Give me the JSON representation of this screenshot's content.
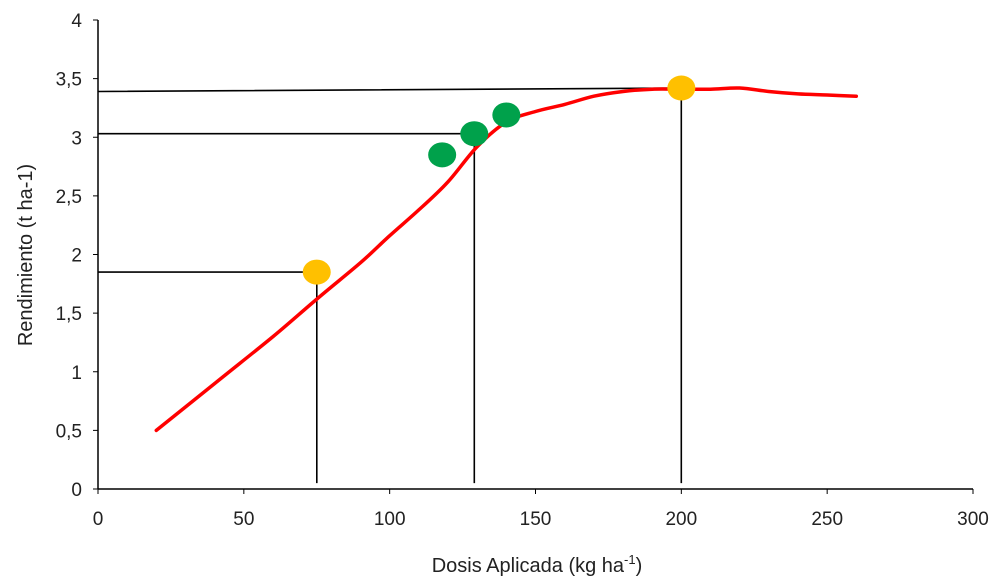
{
  "chart_data": {
    "type": "line",
    "xlabel": "Dosis Aplicada (kg ha",
    "xlabel_superscript": "-1",
    "xlabel_suffix": ")",
    "ylabel": "Rendimiento (t ha-1)",
    "xlim": [
      0,
      300
    ],
    "ylim": [
      0,
      4
    ],
    "x_ticks": [
      "0",
      "50",
      "100",
      "150",
      "200",
      "250",
      "300"
    ],
    "y_ticks": [
      "0",
      "0,5",
      "1",
      "1,5",
      "2",
      "2,5",
      "3",
      "3,5",
      "4"
    ],
    "grid": false,
    "series": [
      {
        "color": "#ff0000",
        "x": [
          20,
          40,
          60,
          75,
          90,
          100,
          110,
          120,
          130,
          140,
          150,
          160,
          170,
          180,
          190,
          200,
          210,
          220,
          230,
          240,
          250,
          260
        ],
        "y": [
          0.5,
          0.9,
          1.3,
          1.62,
          1.93,
          2.16,
          2.38,
          2.62,
          2.92,
          3.13,
          3.22,
          3.28,
          3.35,
          3.39,
          3.41,
          3.41,
          3.41,
          3.42,
          3.39,
          3.37,
          3.36,
          3.35
        ]
      }
    ],
    "markers": [
      {
        "x": 75,
        "y": 1.85,
        "color": "#ffc000"
      },
      {
        "x": 118,
        "y": 2.85,
        "color": "#00a14b"
      },
      {
        "x": 129,
        "y": 3.03,
        "color": "#00a14b"
      },
      {
        "x": 140,
        "y": 3.19,
        "color": "#00a14b"
      },
      {
        "x": 200,
        "y": 3.42,
        "color": "#ffc000"
      }
    ],
    "reference_lines": [
      {
        "from": [
          0,
          1.85
        ],
        "corner": [
          75,
          1.85
        ],
        "to": [
          75,
          0.05
        ]
      },
      {
        "from": [
          0,
          3.03
        ],
        "corner": [
          129,
          3.03
        ],
        "to": [
          129,
          0.05
        ]
      },
      {
        "from": [
          0,
          3.39
        ],
        "corner": [
          200,
          3.42
        ],
        "to": [
          200,
          0.05
        ]
      }
    ],
    "line_color": "#000000"
  }
}
